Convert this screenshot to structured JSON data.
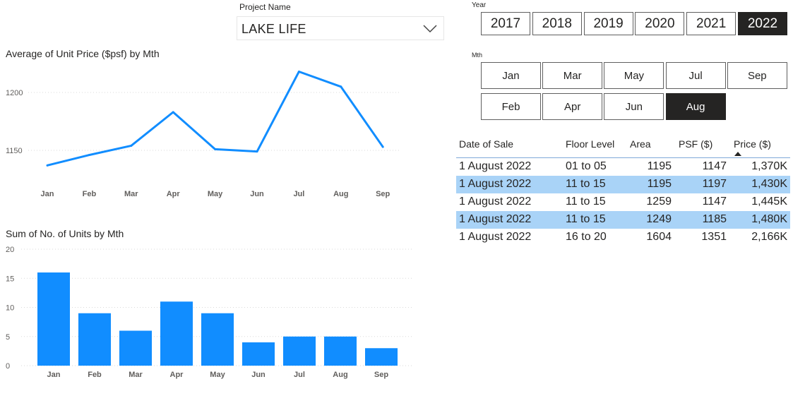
{
  "project_slicer": {
    "label": "Project Name",
    "value": "LAKE LIFE",
    "icon": "chevron-down-icon"
  },
  "line_chart": {
    "title": "Average of Unit Price ($psf) by Mth",
    "chart_data": {
      "type": "line",
      "categories": [
        "Jan",
        "Feb",
        "Mar",
        "Apr",
        "May",
        "Jun",
        "Jul",
        "Aug",
        "Sep"
      ],
      "series": [
        {
          "values": [
            1137,
            1146,
            1154,
            1183,
            1151,
            1149,
            1218,
            1205,
            1153
          ]
        }
      ],
      "yticks": [
        1150,
        1200
      ],
      "ylim": [
        1125,
        1225
      ],
      "grid": true,
      "color": "#118dff"
    }
  },
  "bar_chart": {
    "title": "Sum of No. of Units by Mth",
    "chart_data": {
      "type": "bar",
      "categories": [
        "Jan",
        "Feb",
        "Mar",
        "Apr",
        "May",
        "Jun",
        "Jul",
        "Aug",
        "Sep"
      ],
      "values": [
        16,
        9,
        6,
        11,
        9,
        4,
        5,
        5,
        3
      ],
      "yticks": [
        0,
        5,
        10,
        15,
        20
      ],
      "ylim": [
        0,
        20
      ],
      "grid": true,
      "color": "#118dff"
    }
  },
  "year_slicer": {
    "label": "Year",
    "options": [
      "2017",
      "2018",
      "2019",
      "2020",
      "2021",
      "2022"
    ],
    "selected": "2022"
  },
  "month_slicer": {
    "label": "Mth",
    "options": [
      "Jan",
      "Mar",
      "May",
      "Jul",
      "Sep",
      "Feb",
      "Apr",
      "Jun",
      "Aug"
    ],
    "selected": "Aug"
  },
  "table": {
    "headers": [
      "Date of Sale",
      "Floor Level",
      "Area",
      "PSF ($)",
      "Price ($)"
    ],
    "sort_icon": "sort-triangle-icon",
    "rows": [
      [
        "1 August 2022",
        "01 to 05",
        "1195",
        "1147",
        "1,370K"
      ],
      [
        "1 August 2022",
        "11 to 15",
        "1195",
        "1197",
        "1,430K"
      ],
      [
        "1 August 2022",
        "11 to 15",
        "1259",
        "1147",
        "1,445K"
      ],
      [
        "1 August 2022",
        "11 to 15",
        "1249",
        "1185",
        "1,480K"
      ],
      [
        "1 August 2022",
        "16 to 20",
        "1604",
        "1351",
        "2,166K"
      ]
    ],
    "highlight_color": "#a9d3f7"
  }
}
